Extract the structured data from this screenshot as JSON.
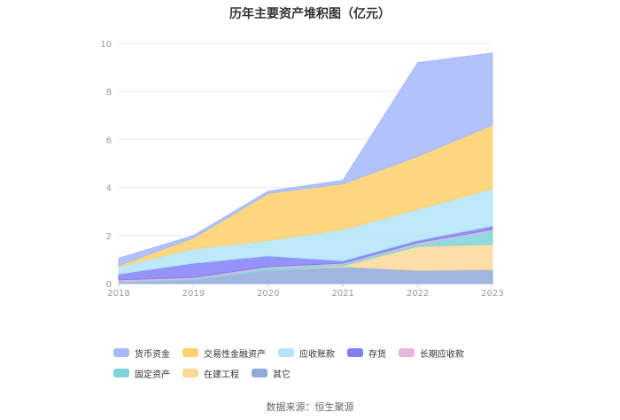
{
  "chart_data": {
    "type": "area",
    "stacked": true,
    "title": "历年主要资产堆积图（亿元）",
    "xlabel": "",
    "ylabel": "",
    "ylim": [
      0,
      10
    ],
    "yticks": [
      0,
      2,
      4,
      6,
      8,
      10
    ],
    "categories": [
      "2018",
      "2019",
      "2020",
      "2021",
      "2022",
      "2023"
    ],
    "series": [
      {
        "name": "其它",
        "color": "#8eaadb",
        "values": [
          0.05,
          0.15,
          0.55,
          0.7,
          0.55,
          0.58
        ]
      },
      {
        "name": "在建工程",
        "color": "#fdd998",
        "values": [
          0.0,
          0.0,
          0.0,
          0.05,
          1.0,
          1.05
        ]
      },
      {
        "name": "固定资产",
        "color": "#7fd4d8",
        "values": [
          0.05,
          0.05,
          0.1,
          0.08,
          0.1,
          0.57
        ]
      },
      {
        "name": "长期应收款",
        "color": "#e8b5dc",
        "values": [
          0.05,
          0.05,
          0.05,
          0.02,
          0.05,
          0.05
        ]
      },
      {
        "name": "存货",
        "color": "#8080f8",
        "values": [
          0.25,
          0.6,
          0.45,
          0.1,
          0.1,
          0.15
        ]
      },
      {
        "name": "应收账款",
        "color": "#b3e5f9",
        "values": [
          0.3,
          0.6,
          0.65,
          1.3,
          1.3,
          1.55
        ]
      },
      {
        "name": "交易性金融资产",
        "color": "#ffd06b",
        "values": [
          0.05,
          0.45,
          1.95,
          1.9,
          2.2,
          2.65
        ]
      },
      {
        "name": "货币资金",
        "color": "#a5b9fb",
        "values": [
          0.3,
          0.1,
          0.1,
          0.15,
          3.9,
          3.0
        ]
      }
    ],
    "legend_position": "bottom",
    "grid": true,
    "source": "数据来源：恒生聚源"
  }
}
